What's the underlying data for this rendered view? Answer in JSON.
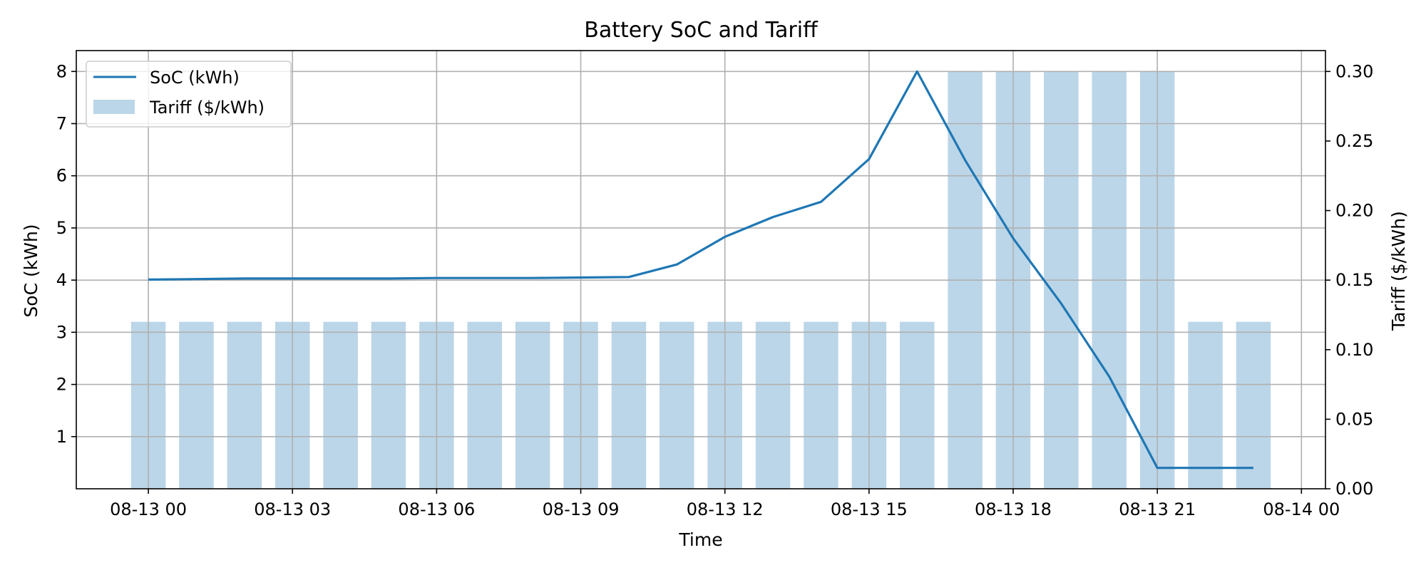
{
  "chart_data": {
    "type": "bar+line",
    "title": "Battery SoC and Tariff",
    "xlabel": "Time",
    "ylabel_left": "SoC (kWh)",
    "ylabel_right": "Tariff ($/kWh)",
    "x": [
      "08-13 00:00",
      "08-13 01:00",
      "08-13 02:00",
      "08-13 03:00",
      "08-13 04:00",
      "08-13 05:00",
      "08-13 06:00",
      "08-13 07:00",
      "08-13 08:00",
      "08-13 09:00",
      "08-13 10:00",
      "08-13 11:00",
      "08-13 12:00",
      "08-13 13:00",
      "08-13 14:00",
      "08-13 15:00",
      "08-13 16:00",
      "08-13 17:00",
      "08-13 18:00",
      "08-13 19:00",
      "08-13 20:00",
      "08-13 21:00",
      "08-13 22:00",
      "08-13 23:00"
    ],
    "series": [
      {
        "name": "SoC (kWh)",
        "kind": "line",
        "axis": "left",
        "color": "#1f77b4",
        "values": [
          4.01,
          4.02,
          4.03,
          4.03,
          4.03,
          4.03,
          4.04,
          4.04,
          4.04,
          4.05,
          4.06,
          4.3,
          4.83,
          5.21,
          5.5,
          6.32,
          8.0,
          6.3,
          4.8,
          3.55,
          2.15,
          0.4,
          0.4,
          0.4
        ]
      },
      {
        "name": "Tariff ($/kWh)",
        "kind": "bar",
        "axis": "right",
        "color": "#1f77b4",
        "opacity": 0.3,
        "values": [
          0.12,
          0.12,
          0.12,
          0.12,
          0.12,
          0.12,
          0.12,
          0.12,
          0.12,
          0.12,
          0.12,
          0.12,
          0.12,
          0.12,
          0.12,
          0.12,
          0.12,
          0.3,
          0.3,
          0.3,
          0.3,
          0.3,
          0.12,
          0.12
        ]
      }
    ],
    "x_ticks": [
      "08-13 00",
      "08-13 03",
      "08-13 06",
      "08-13 09",
      "08-13 12",
      "08-13 15",
      "08-13 18",
      "08-13 21",
      "08-14 00"
    ],
    "x_range_hours": [
      -1.5,
      24.5
    ],
    "y_left": {
      "lim": [
        0,
        8.4
      ],
      "ticks": [
        1,
        2,
        3,
        4,
        5,
        6,
        7,
        8
      ]
    },
    "y_right": {
      "lim": [
        0,
        0.315
      ],
      "ticks": [
        "0.00",
        "0.05",
        "0.10",
        "0.15",
        "0.20",
        "0.25",
        "0.30"
      ]
    },
    "grid": true,
    "legend_position": "top-left"
  }
}
